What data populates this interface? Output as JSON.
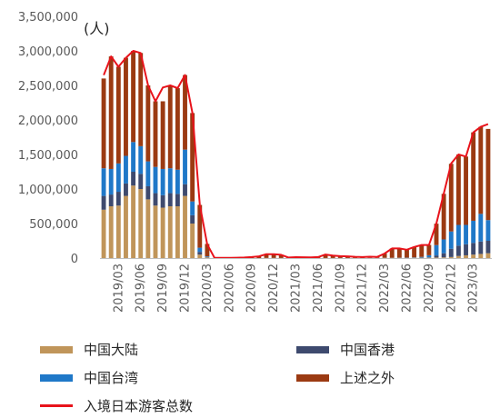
{
  "chart_data": {
    "type": "bar",
    "stacked": true,
    "unit_label": "(人)",
    "ylim": [
      0,
      3500000
    ],
    "y_ticks": [
      0,
      500000,
      1000000,
      1500000,
      2000000,
      2500000,
      3000000,
      3500000
    ],
    "y_tick_labels": [
      "0",
      "500,000",
      "1,000,000",
      "1,500,000",
      "2,000,000",
      "2,500,000",
      "3,000,000",
      "3,500,000"
    ],
    "grid": false,
    "legend_position": "bottom",
    "categories": [
      "2019/01",
      "2019/02",
      "2019/03",
      "2019/04",
      "2019/05",
      "2019/06",
      "2019/07",
      "2019/08",
      "2019/09",
      "2019/10",
      "2019/11",
      "2019/12",
      "2020/01",
      "2020/02",
      "2020/03",
      "2020/04",
      "2020/05",
      "2020/06",
      "2020/07",
      "2020/08",
      "2020/09",
      "2020/10",
      "2020/11",
      "2020/12",
      "2021/01",
      "2021/02",
      "2021/03",
      "2021/04",
      "2021/05",
      "2021/06",
      "2021/07",
      "2021/08",
      "2021/09",
      "2021/10",
      "2021/11",
      "2021/12",
      "2022/01",
      "2022/02",
      "2022/03",
      "2022/04",
      "2022/05",
      "2022/06",
      "2022/07",
      "2022/08",
      "2022/09",
      "2022/10",
      "2022/11",
      "2022/12",
      "2023/01",
      "2023/02",
      "2023/03",
      "2023/04",
      "2023/05"
    ],
    "x_tick_labels": [
      "2019/03",
      "2019/06",
      "2019/09",
      "2019/12",
      "2020/03",
      "2020/06",
      "2020/09",
      "2020/12",
      "2021/03",
      "2021/06",
      "2021/09",
      "2021/12",
      "2022/03",
      "2022/06",
      "2022/09",
      "2022/12",
      "2023/03"
    ],
    "series": [
      {
        "name": "中国大陆",
        "color": "#C0955A",
        "values": [
          700000,
          750000,
          760000,
          900000,
          1050000,
          1000000,
          850000,
          760000,
          730000,
          750000,
          750000,
          900000,
          500000,
          50000,
          10000,
          0,
          0,
          0,
          0,
          0,
          0,
          0,
          1000,
          1000,
          500,
          500,
          500,
          500,
          500,
          500,
          500,
          500,
          500,
          500,
          500,
          500,
          2000,
          2000,
          3000,
          3000,
          3000,
          3000,
          4000,
          5000,
          6000,
          8000,
          10000,
          15000,
          30000,
          40000,
          50000,
          60000,
          70000
        ]
      },
      {
        "name": "中国香港",
        "color": "#3E4A6E",
        "values": [
          200000,
          170000,
          200000,
          180000,
          200000,
          220000,
          190000,
          180000,
          180000,
          190000,
          180000,
          170000,
          120000,
          40000,
          5000,
          0,
          0,
          0,
          0,
          0,
          0,
          0,
          500,
          500,
          200,
          200,
          200,
          200,
          200,
          200,
          200,
          200,
          200,
          200,
          200,
          200,
          500,
          500,
          500,
          500,
          500,
          500,
          1000,
          2000,
          5000,
          30000,
          60000,
          120000,
          150000,
          160000,
          170000,
          180000,
          180000
        ]
      },
      {
        "name": "中国台湾",
        "color": "#1F78C8",
        "values": [
          400000,
          370000,
          410000,
          400000,
          430000,
          400000,
          360000,
          380000,
          380000,
          360000,
          350000,
          500000,
          200000,
          60000,
          10000,
          0,
          0,
          0,
          0,
          0,
          0,
          0,
          500,
          500,
          300,
          300,
          300,
          300,
          300,
          300,
          300,
          300,
          300,
          300,
          300,
          300,
          1000,
          1000,
          1000,
          1000,
          2000,
          3000,
          5000,
          10000,
          30000,
          150000,
          200000,
          250000,
          300000,
          280000,
          320000,
          400000,
          300000
        ]
      },
      {
        "name": "上述之外",
        "color": "#9B3A12",
        "values": [
          1300000,
          1630000,
          1400000,
          1420000,
          1320000,
          1350000,
          1100000,
          950000,
          980000,
          1200000,
          1180000,
          1080000,
          1280000,
          620000,
          180000,
          1000,
          2000,
          3000,
          4000,
          8000,
          14000,
          25000,
          56000,
          55000,
          46000,
          7000,
          12000,
          11000,
          10000,
          13000,
          50000,
          35000,
          27000,
          24000,
          17000,
          14000,
          20000,
          15000,
          60000,
          135000,
          134000,
          117000,
          150000,
          173000,
          150000,
          310000,
          660000,
          980000,
          1020000,
          990000,
          1280000,
          1260000,
          1320000
        ]
      }
    ],
    "line": {
      "name": "入境日本游客总数",
      "color": "#E8131B",
      "values": [
        2650000,
        2920000,
        2770000,
        2900000,
        3000000,
        2970000,
        2500000,
        2270000,
        2470000,
        2500000,
        2460000,
        2650000,
        2100000,
        770000,
        200000,
        3000,
        2000,
        3000,
        5000,
        8000,
        14000,
        25000,
        56000,
        56000,
        47000,
        8000,
        13000,
        12000,
        11000,
        14000,
        51000,
        36000,
        28000,
        25000,
        18000,
        15000,
        20000,
        17000,
        66000,
        140000,
        140000,
        121000,
        160000,
        190000,
        190000,
        500000,
        930000,
        1370000,
        1500000,
        1470000,
        1820000,
        1900000,
        1940000
      ]
    }
  }
}
